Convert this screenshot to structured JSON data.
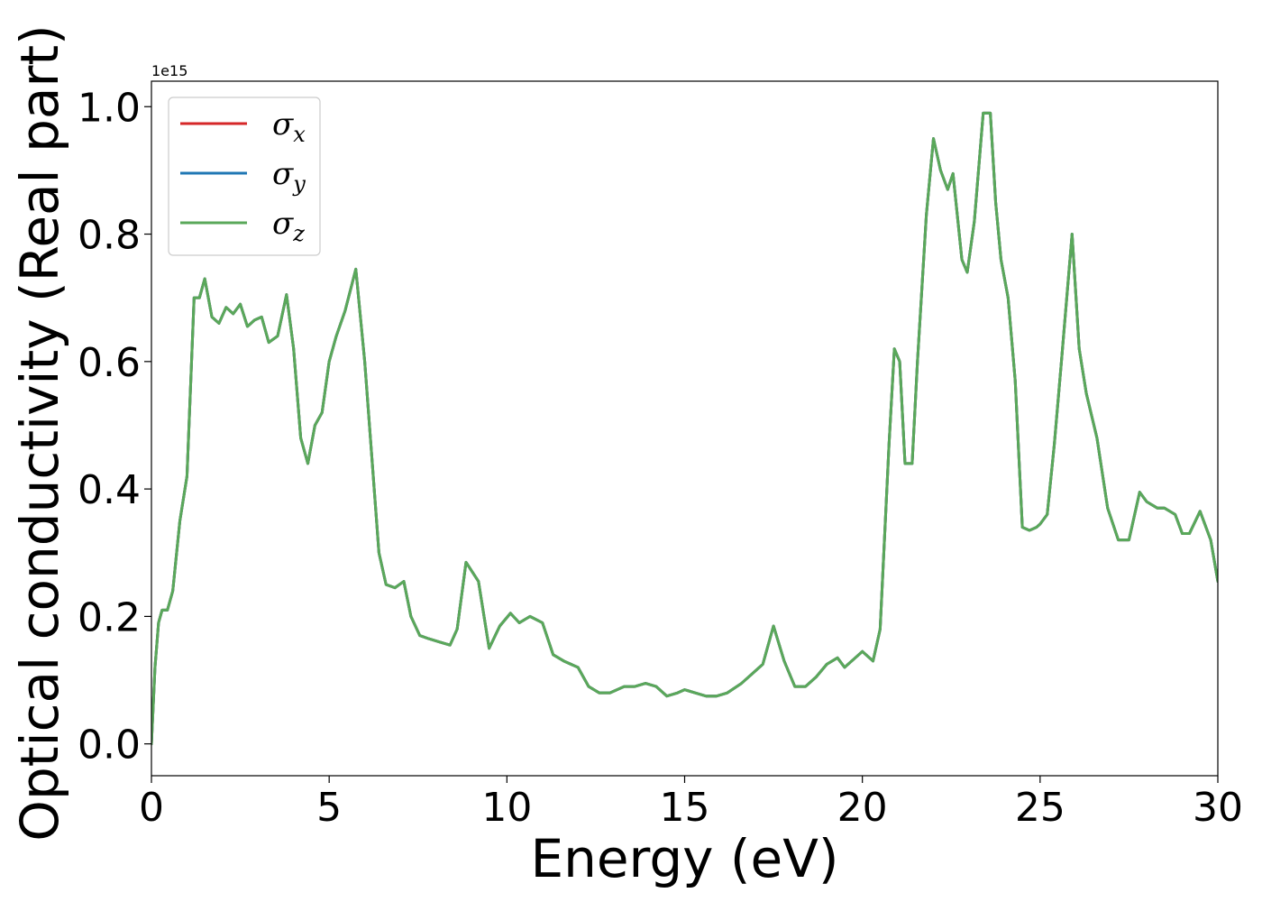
{
  "chart_data": {
    "type": "line",
    "xlabel": "Energy (eV)",
    "ylabel": "Optical conductivity (Real part)",
    "y_offset_label": "1e15",
    "xlim": [
      0,
      30
    ],
    "ylim": [
      -0.05,
      1.04
    ],
    "x_ticks": [
      0,
      5,
      10,
      15,
      20,
      25,
      30
    ],
    "x_tick_labels": [
      "0",
      "5",
      "10",
      "15",
      "20",
      "25",
      "30"
    ],
    "y_ticks": [
      0.0,
      0.2,
      0.4,
      0.6,
      0.8,
      1.0
    ],
    "y_tick_labels": [
      "0.0",
      "0.2",
      "0.4",
      "0.6",
      "0.8",
      "1.0"
    ],
    "grid": false,
    "legend_position": "top-left",
    "series": [
      {
        "name": "σx",
        "symbol": "σ",
        "subscript": "x",
        "color": "#d62728",
        "x": [
          0,
          0.1,
          0.2,
          0.3,
          0.45,
          0.6,
          0.8,
          1.0,
          1.2,
          1.35,
          1.5,
          1.7,
          1.9,
          2.1,
          2.3,
          2.5,
          2.7,
          2.9,
          3.1,
          3.3,
          3.55,
          3.8,
          4.0,
          4.2,
          4.4,
          4.6,
          4.8,
          5.0,
          5.2,
          5.45,
          5.75,
          6.0,
          6.2,
          6.4,
          6.6,
          6.85,
          7.1,
          7.3,
          7.55,
          7.8,
          8.1,
          8.4,
          8.6,
          8.85,
          9.2,
          9.5,
          9.8,
          10.1,
          10.35,
          10.65,
          11.0,
          11.3,
          11.6,
          12.0,
          12.3,
          12.6,
          12.9,
          13.3,
          13.6,
          13.9,
          14.2,
          14.5,
          14.8,
          15.0,
          15.3,
          15.6,
          15.9,
          16.2,
          16.6,
          16.9,
          17.2,
          17.5,
          17.8,
          18.1,
          18.4,
          18.7,
          19.0,
          19.3,
          19.5,
          19.8,
          20.0,
          20.3,
          20.5,
          20.75,
          20.9,
          21.05,
          21.2,
          21.4,
          21.55,
          21.8,
          22.0,
          22.2,
          22.4,
          22.55,
          22.8,
          22.95,
          23.15,
          23.4,
          23.6,
          23.75,
          23.9,
          24.1,
          24.3,
          24.5,
          24.7,
          24.9,
          25.0,
          25.2,
          25.4,
          25.6,
          25.9,
          26.1,
          26.3,
          26.6,
          26.9,
          27.2,
          27.5,
          27.8,
          28.0,
          28.3,
          28.5,
          28.8,
          29.0,
          29.2,
          29.5,
          29.8,
          30.0
        ],
        "y": [
          0.0,
          0.12,
          0.19,
          0.21,
          0.21,
          0.24,
          0.35,
          0.42,
          0.7,
          0.7,
          0.73,
          0.67,
          0.66,
          0.685,
          0.675,
          0.69,
          0.655,
          0.665,
          0.67,
          0.63,
          0.64,
          0.705,
          0.62,
          0.48,
          0.44,
          0.5,
          0.52,
          0.6,
          0.64,
          0.68,
          0.745,
          0.6,
          0.45,
          0.3,
          0.25,
          0.245,
          0.255,
          0.2,
          0.17,
          0.165,
          0.16,
          0.155,
          0.18,
          0.285,
          0.255,
          0.15,
          0.185,
          0.205,
          0.19,
          0.2,
          0.19,
          0.14,
          0.13,
          0.12,
          0.09,
          0.08,
          0.08,
          0.09,
          0.09,
          0.095,
          0.09,
          0.075,
          0.08,
          0.085,
          0.08,
          0.075,
          0.075,
          0.08,
          0.095,
          0.11,
          0.125,
          0.185,
          0.13,
          0.09,
          0.09,
          0.105,
          0.125,
          0.135,
          0.12,
          0.135,
          0.145,
          0.13,
          0.18,
          0.47,
          0.62,
          0.6,
          0.44,
          0.44,
          0.6,
          0.83,
          0.95,
          0.9,
          0.87,
          0.895,
          0.76,
          0.74,
          0.82,
          0.99,
          0.99,
          0.85,
          0.76,
          0.7,
          0.57,
          0.34,
          0.335,
          0.34,
          0.345,
          0.36,
          0.47,
          0.6,
          0.8,
          0.62,
          0.55,
          0.48,
          0.37,
          0.32,
          0.32,
          0.395,
          0.38,
          0.37,
          0.37,
          0.36,
          0.33,
          0.33,
          0.365,
          0.32,
          0.255
        ]
      },
      {
        "name": "σy",
        "symbol": "σ",
        "subscript": "y",
        "color": "#1f77b4",
        "x": [
          0,
          0.1,
          0.2,
          0.3,
          0.45,
          0.6,
          0.8,
          1.0,
          1.2,
          1.35,
          1.5,
          1.7,
          1.9,
          2.1,
          2.3,
          2.5,
          2.7,
          2.9,
          3.1,
          3.3,
          3.55,
          3.8,
          4.0,
          4.2,
          4.4,
          4.6,
          4.8,
          5.0,
          5.2,
          5.45,
          5.75,
          6.0,
          6.2,
          6.4,
          6.6,
          6.85,
          7.1,
          7.3,
          7.55,
          7.8,
          8.1,
          8.4,
          8.6,
          8.85,
          9.2,
          9.5,
          9.8,
          10.1,
          10.35,
          10.65,
          11.0,
          11.3,
          11.6,
          12.0,
          12.3,
          12.6,
          12.9,
          13.3,
          13.6,
          13.9,
          14.2,
          14.5,
          14.8,
          15.0,
          15.3,
          15.6,
          15.9,
          16.2,
          16.6,
          16.9,
          17.2,
          17.5,
          17.8,
          18.1,
          18.4,
          18.7,
          19.0,
          19.3,
          19.5,
          19.8,
          20.0,
          20.3,
          20.5,
          20.75,
          20.9,
          21.05,
          21.2,
          21.4,
          21.55,
          21.8,
          22.0,
          22.2,
          22.4,
          22.55,
          22.8,
          22.95,
          23.15,
          23.4,
          23.6,
          23.75,
          23.9,
          24.1,
          24.3,
          24.5,
          24.7,
          24.9,
          25.0,
          25.2,
          25.4,
          25.6,
          25.9,
          26.1,
          26.3,
          26.6,
          26.9,
          27.2,
          27.5,
          27.8,
          28.0,
          28.3,
          28.5,
          28.8,
          29.0,
          29.2,
          29.5,
          29.8,
          30.0
        ],
        "y": [
          0.0,
          0.12,
          0.19,
          0.21,
          0.21,
          0.24,
          0.35,
          0.42,
          0.7,
          0.7,
          0.73,
          0.67,
          0.66,
          0.685,
          0.675,
          0.69,
          0.655,
          0.665,
          0.67,
          0.63,
          0.64,
          0.705,
          0.62,
          0.48,
          0.44,
          0.5,
          0.52,
          0.6,
          0.64,
          0.68,
          0.745,
          0.6,
          0.45,
          0.3,
          0.25,
          0.245,
          0.255,
          0.2,
          0.17,
          0.165,
          0.16,
          0.155,
          0.18,
          0.285,
          0.255,
          0.15,
          0.185,
          0.205,
          0.19,
          0.2,
          0.19,
          0.14,
          0.13,
          0.12,
          0.09,
          0.08,
          0.08,
          0.09,
          0.09,
          0.095,
          0.09,
          0.075,
          0.08,
          0.085,
          0.08,
          0.075,
          0.075,
          0.08,
          0.095,
          0.11,
          0.125,
          0.185,
          0.13,
          0.09,
          0.09,
          0.105,
          0.125,
          0.135,
          0.12,
          0.135,
          0.145,
          0.13,
          0.18,
          0.47,
          0.62,
          0.6,
          0.44,
          0.44,
          0.6,
          0.83,
          0.95,
          0.9,
          0.87,
          0.895,
          0.76,
          0.74,
          0.82,
          0.99,
          0.99,
          0.85,
          0.76,
          0.7,
          0.57,
          0.34,
          0.335,
          0.34,
          0.345,
          0.36,
          0.47,
          0.6,
          0.8,
          0.62,
          0.55,
          0.48,
          0.37,
          0.32,
          0.32,
          0.395,
          0.38,
          0.37,
          0.37,
          0.36,
          0.33,
          0.33,
          0.365,
          0.32,
          0.255
        ]
      },
      {
        "name": "σz",
        "symbol": "σ",
        "subscript": "z",
        "color": "#5aa85a",
        "x": [
          0,
          0.1,
          0.2,
          0.3,
          0.45,
          0.6,
          0.8,
          1.0,
          1.2,
          1.35,
          1.5,
          1.7,
          1.9,
          2.1,
          2.3,
          2.5,
          2.7,
          2.9,
          3.1,
          3.3,
          3.55,
          3.8,
          4.0,
          4.2,
          4.4,
          4.6,
          4.8,
          5.0,
          5.2,
          5.45,
          5.75,
          6.0,
          6.2,
          6.4,
          6.6,
          6.85,
          7.1,
          7.3,
          7.55,
          7.8,
          8.1,
          8.4,
          8.6,
          8.85,
          9.2,
          9.5,
          9.8,
          10.1,
          10.35,
          10.65,
          11.0,
          11.3,
          11.6,
          12.0,
          12.3,
          12.6,
          12.9,
          13.3,
          13.6,
          13.9,
          14.2,
          14.5,
          14.8,
          15.0,
          15.3,
          15.6,
          15.9,
          16.2,
          16.6,
          16.9,
          17.2,
          17.5,
          17.8,
          18.1,
          18.4,
          18.7,
          19.0,
          19.3,
          19.5,
          19.8,
          20.0,
          20.3,
          20.5,
          20.75,
          20.9,
          21.05,
          21.2,
          21.4,
          21.55,
          21.8,
          22.0,
          22.2,
          22.4,
          22.55,
          22.8,
          22.95,
          23.15,
          23.4,
          23.6,
          23.75,
          23.9,
          24.1,
          24.3,
          24.5,
          24.7,
          24.9,
          25.0,
          25.2,
          25.4,
          25.6,
          25.9,
          26.1,
          26.3,
          26.6,
          26.9,
          27.2,
          27.5,
          27.8,
          28.0,
          28.3,
          28.5,
          28.8,
          29.0,
          29.2,
          29.5,
          29.8,
          30.0
        ],
        "y": [
          0.0,
          0.12,
          0.19,
          0.21,
          0.21,
          0.24,
          0.35,
          0.42,
          0.7,
          0.7,
          0.73,
          0.67,
          0.66,
          0.685,
          0.675,
          0.69,
          0.655,
          0.665,
          0.67,
          0.63,
          0.64,
          0.705,
          0.62,
          0.48,
          0.44,
          0.5,
          0.52,
          0.6,
          0.64,
          0.68,
          0.745,
          0.6,
          0.45,
          0.3,
          0.25,
          0.245,
          0.255,
          0.2,
          0.17,
          0.165,
          0.16,
          0.155,
          0.18,
          0.285,
          0.255,
          0.15,
          0.185,
          0.205,
          0.19,
          0.2,
          0.19,
          0.14,
          0.13,
          0.12,
          0.09,
          0.08,
          0.08,
          0.09,
          0.09,
          0.095,
          0.09,
          0.075,
          0.08,
          0.085,
          0.08,
          0.075,
          0.075,
          0.08,
          0.095,
          0.11,
          0.125,
          0.185,
          0.13,
          0.09,
          0.09,
          0.105,
          0.125,
          0.135,
          0.12,
          0.135,
          0.145,
          0.13,
          0.18,
          0.47,
          0.62,
          0.6,
          0.44,
          0.44,
          0.6,
          0.83,
          0.95,
          0.9,
          0.87,
          0.895,
          0.76,
          0.74,
          0.82,
          0.99,
          0.99,
          0.85,
          0.76,
          0.7,
          0.57,
          0.34,
          0.335,
          0.34,
          0.345,
          0.36,
          0.47,
          0.6,
          0.8,
          0.62,
          0.55,
          0.48,
          0.37,
          0.32,
          0.32,
          0.395,
          0.38,
          0.37,
          0.37,
          0.36,
          0.33,
          0.33,
          0.365,
          0.32,
          0.255
        ]
      }
    ]
  }
}
